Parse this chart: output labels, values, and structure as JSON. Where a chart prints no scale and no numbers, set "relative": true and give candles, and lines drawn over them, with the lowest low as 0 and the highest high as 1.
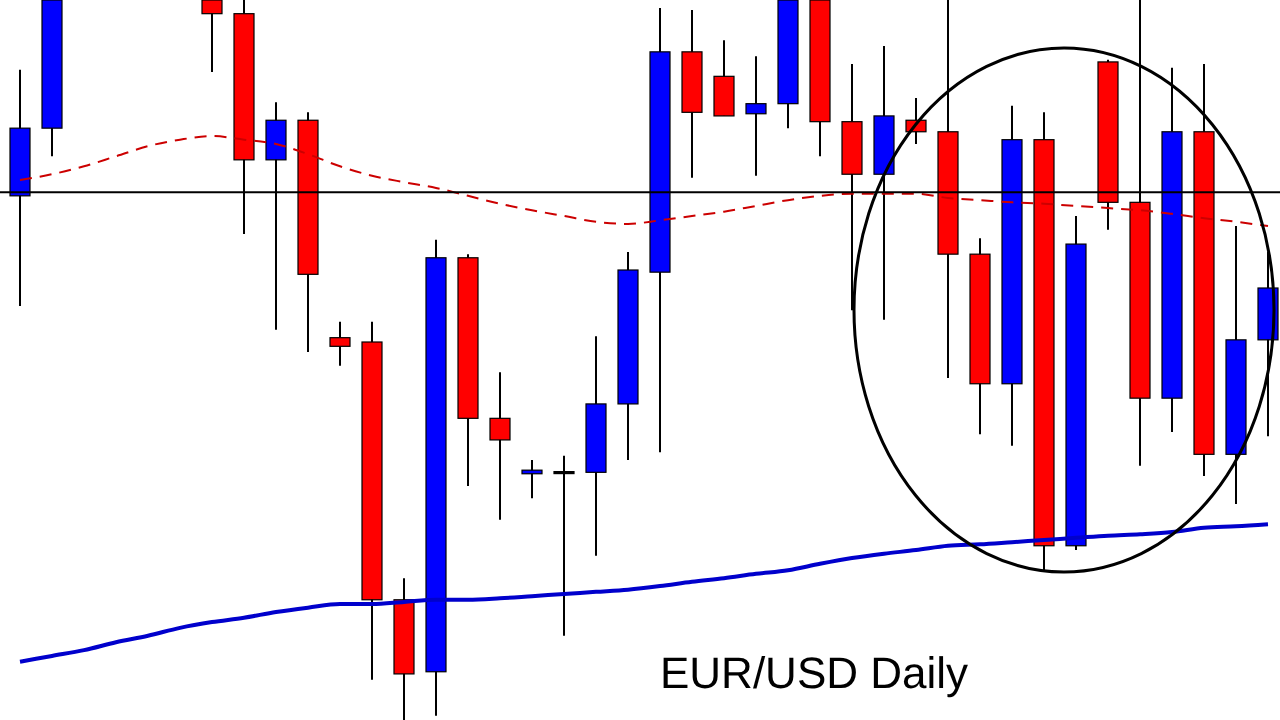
{
  "chart_data": {
    "type": "candlestick",
    "title": "EUR/USD Daily",
    "relative": true,
    "tick_labels": false,
    "marker": "none",
    "categories": [
      null,
      null,
      null,
      null,
      null,
      null,
      null,
      null,
      null,
      null,
      null,
      null,
      null,
      null,
      null,
      null,
      null,
      null,
      null,
      null,
      null,
      null,
      null,
      null,
      null,
      null,
      null,
      null,
      null,
      null,
      null,
      null,
      null,
      null,
      null,
      null,
      null,
      null,
      null,
      null
    ],
    "ohlc": [
      [
        0.728,
        0.903,
        0.575,
        0.822
      ],
      [
        0.822,
        1,
        0.783,
        1
      ],
      null,
      null,
      null,
      null,
      [
        1,
        1,
        0.9,
        0.981
      ],
      [
        0.981,
        1,
        0.675,
        0.778
      ],
      [
        0.778,
        0.858,
        0.542,
        0.833
      ],
      [
        0.833,
        0.844,
        0.511,
        0.619
      ],
      [
        0.531,
        0.553,
        0.492,
        0.519
      ],
      [
        0.525,
        0.553,
        0.056,
        0.167
      ],
      [
        0.167,
        0.197,
        0,
        0.064
      ],
      [
        0.067,
        0.667,
        0.006,
        0.642
      ],
      [
        0.642,
        0.647,
        0.325,
        0.419
      ],
      [
        0.419,
        0.483,
        0.278,
        0.389
      ],
      [
        0.342,
        0.361,
        0.308,
        0.347
      ],
      [
        0.345,
        0.367,
        0.117,
        0.345
      ],
      [
        0.344,
        0.533,
        0.228,
        0.439
      ],
      [
        0.439,
        0.65,
        0.361,
        0.625
      ],
      [
        0.622,
        0.989,
        0.372,
        0.928
      ],
      [
        0.928,
        0.986,
        0.753,
        0.844
      ],
      [
        0.894,
        0.944,
        0.839,
        0.839
      ],
      [
        0.842,
        0.922,
        0.756,
        0.856
      ],
      [
        0.856,
        1,
        0.822,
        1
      ],
      [
        1,
        1,
        0.783,
        0.831
      ],
      [
        0.831,
        0.911,
        0.569,
        0.758
      ],
      [
        0.758,
        0.936,
        0.556,
        0.839
      ],
      [
        0.833,
        0.864,
        0.8,
        0.817
      ],
      [
        0.817,
        1,
        0.475,
        0.647
      ],
      [
        0.647,
        0.669,
        0.397,
        0.467
      ],
      [
        0.467,
        0.853,
        0.381,
        0.806
      ],
      [
        0.806,
        0.844,
        0.206,
        0.242
      ],
      [
        0.242,
        0.7,
        0.236,
        0.661
      ],
      [
        0.914,
        0.917,
        0.681,
        0.719
      ],
      [
        0.719,
        1,
        0.353,
        0.447
      ],
      [
        0.447,
        0.906,
        0.4,
        0.817
      ],
      [
        0.817,
        0.911,
        0.339,
        0.369
      ],
      [
        0.369,
        0.686,
        0.3,
        0.528
      ],
      [
        0.528,
        0.65,
        0.394,
        0.6
      ]
    ],
    "colors": [
      "#0000ff",
      "#0000ff",
      null,
      null,
      null,
      null,
      "#ff0000",
      "#ff0000",
      "#0000ff",
      "#ff0000",
      "#ff0000",
      "#ff0000",
      "#ff0000",
      "#0000ff",
      "#ff0000",
      "#ff0000",
      "#0000ff",
      "#000000",
      "#0000ff",
      "#0000ff",
      "#0000ff",
      "#ff0000",
      "#ff0000",
      "#0000ff",
      "#0000ff",
      "#ff0000",
      "#ff0000",
      "#0000ff",
      "#ff0000",
      "#ff0000",
      "#ff0000",
      "#0000ff",
      "#ff0000",
      "#0000ff",
      "#ff0000",
      "#ff0000",
      "#0000ff",
      "#ff0000",
      "#0000ff",
      "#0000ff"
    ],
    "series": [
      {
        "type": "line",
        "color": "#cc0000",
        "line_style": "dashed",
        "values": [
          0.75,
          0.758,
          0.769,
          0.783,
          0.797,
          0.806,
          0.811,
          0.806,
          0.8,
          0.786,
          0.769,
          0.756,
          0.747,
          0.739,
          0.728,
          0.717,
          0.708,
          0.7,
          0.692,
          0.689,
          0.694,
          0.7,
          0.706,
          0.714,
          0.722,
          0.728,
          0.731,
          0.731,
          0.731,
          0.725,
          0.722,
          0.719,
          0.717,
          0.714,
          0.711,
          0.708,
          0.703,
          0.697,
          0.692,
          0.686
        ]
      },
      {
        "type": "line",
        "color": "#0000cc",
        "line_style": "solid",
        "values": [
          0.081,
          0.089,
          0.097,
          0.108,
          0.117,
          0.128,
          0.136,
          0.142,
          0.15,
          0.156,
          0.161,
          0.161,
          0.164,
          0.167,
          0.167,
          0.169,
          0.172,
          0.175,
          0.178,
          0.181,
          0.186,
          0.192,
          0.197,
          0.203,
          0.208,
          0.217,
          0.225,
          0.231,
          0.236,
          0.242,
          0.244,
          0.247,
          0.25,
          0.253,
          0.256,
          0.258,
          0.261,
          0.267,
          0.269,
          0.272
        ]
      }
    ],
    "ref_lines": [
      {
        "axis": "y",
        "value": 0.733,
        "color": "#000000"
      }
    ]
  }
}
